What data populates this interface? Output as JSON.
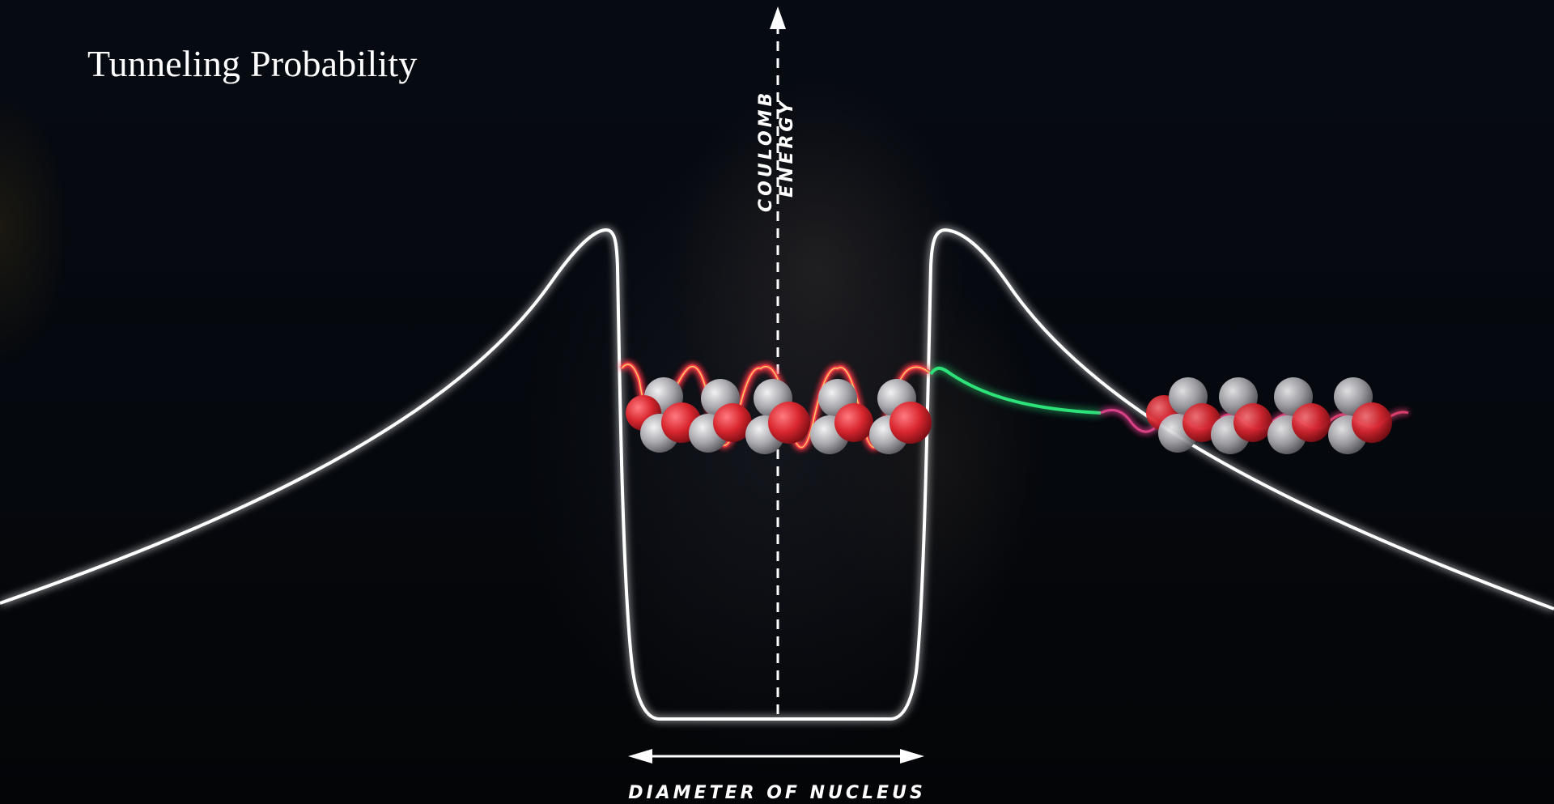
{
  "title": "Tunneling Probability",
  "labels": {
    "y_axis_line1": "COULOMB",
    "y_axis_line2": "ENERGY",
    "x_span": "DIAMETER OF NUCLEUS"
  },
  "colors": {
    "background": "#05070b",
    "curve": "#ffffff",
    "transmitted_wave": "#2ee27a",
    "proton": "#e0343c",
    "neutron": "#b8b8bc",
    "wave_glow": "#ff3a3a",
    "wave_core": "#ffd56a"
  },
  "icons": {
    "axis_arrow": "arrow-up-icon",
    "span_arrow": "double-arrow-icon"
  }
}
